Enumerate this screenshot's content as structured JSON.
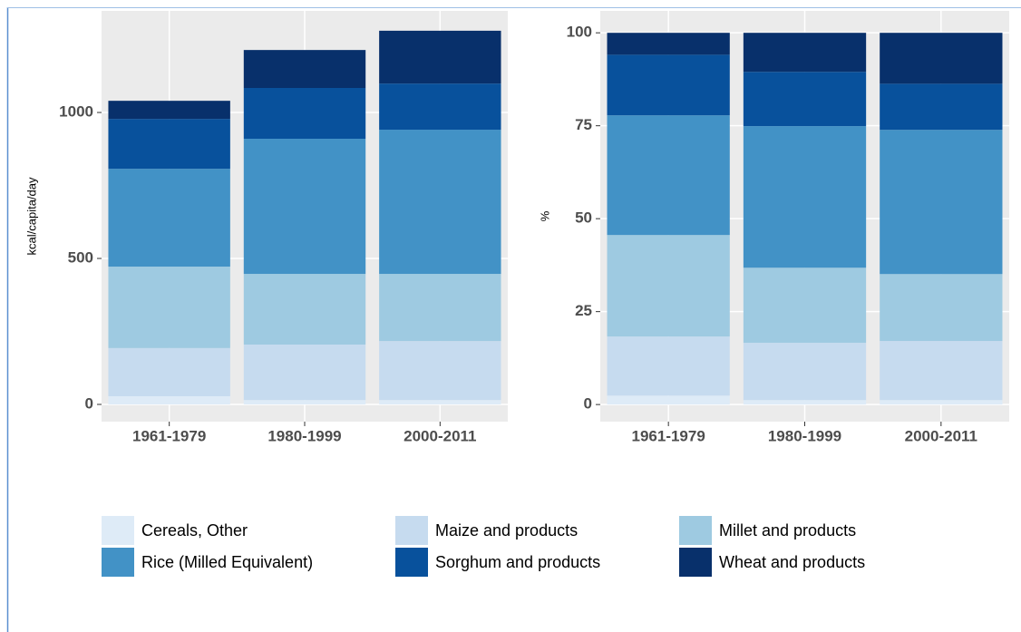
{
  "chart_data": [
    {
      "type": "stacked-bar",
      "y_label": "kcal/capita/day",
      "categories": [
        "1961-1979",
        "1980-1999",
        "2000-2011"
      ],
      "series": [
        {
          "name": "Cereals, Other",
          "color": "#deebf7",
          "values": [
            28,
            15,
            15
          ]
        },
        {
          "name": "Maize and products",
          "color": "#c6dbef",
          "values": [
            165,
            190,
            202
          ]
        },
        {
          "name": "Millet and products",
          "color": "#9ecae1",
          "values": [
            279,
            242,
            230
          ]
        },
        {
          "name": "Rice (Milled Equivalent)",
          "color": "#4292c6",
          "values": [
            335,
            463,
            494
          ]
        },
        {
          "name": "Sorghum and products",
          "color": "#08519c",
          "values": [
            171,
            174,
            158
          ]
        },
        {
          "name": "Wheat and products",
          "color": "#08306b",
          "values": [
            62,
            130,
            181
          ]
        }
      ],
      "ylim": [
        -59,
        1348
      ],
      "yticks": [
        0,
        500,
        1000
      ],
      "grid": true
    },
    {
      "type": "stacked-bar",
      "y_label": "%",
      "categories": [
        "1961-1979",
        "1980-1999",
        "2000-2011"
      ],
      "series": [
        {
          "values": [
            2.4,
            1.2,
            1.2
          ]
        },
        {
          "values": [
            15.9,
            15.4,
            15.9
          ]
        },
        {
          "values": [
            27.3,
            20.2,
            18.0
          ]
        },
        {
          "values": [
            32.2,
            38.1,
            38.8
          ]
        },
        {
          "values": [
            16.3,
            14.6,
            12.4
          ]
        },
        {
          "values": [
            5.9,
            10.5,
            13.7
          ]
        }
      ],
      "ylim": [
        -4.6,
        105.9
      ],
      "yticks": [
        0,
        25,
        50,
        75,
        100
      ],
      "grid": true
    }
  ]
}
